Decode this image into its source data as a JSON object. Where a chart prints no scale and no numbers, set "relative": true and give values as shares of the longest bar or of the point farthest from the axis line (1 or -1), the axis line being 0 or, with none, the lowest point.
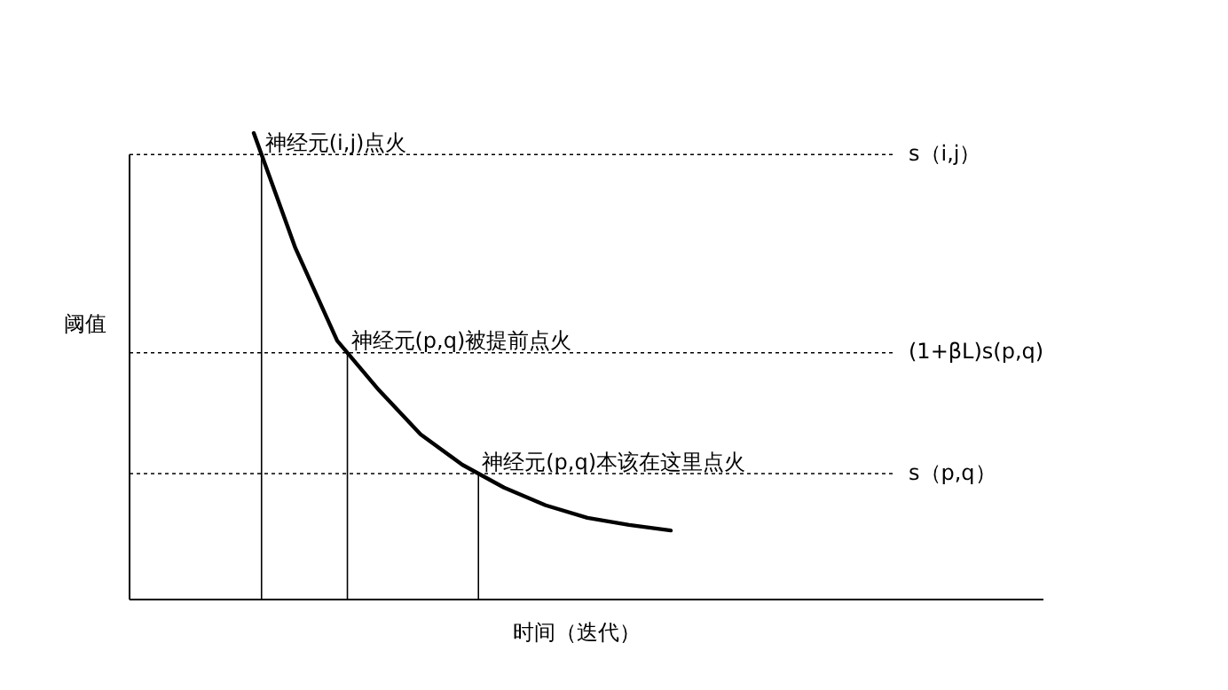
{
  "chart_data": {
    "type": "line",
    "relative": true,
    "xlabel": "时间（迭代）",
    "line_style": "solid",
    "categories": [
      null,
      null,
      null,
      null,
      null,
      null,
      null,
      null,
      null,
      null,
      null
    ],
    "series": [
      {
        "color": "#000000",
        "values": [
          1.0,
          0.753,
          0.555,
          0.449,
          0.354,
          0.289,
          0.24,
          0.202,
          0.175,
          0.16,
          0.148
        ]
      }
    ],
    "ref_lines": [
      {
        "axis": "y",
        "value": 0.954,
        "label": "s（i,j）",
        "line_style": "dotted",
        "color": "#000000"
      },
      {
        "axis": "y",
        "value": 0.529,
        "label": "(1+βL)s(p,q)",
        "line_style": "dotted",
        "color": "#000000"
      },
      {
        "axis": "y",
        "value": 0.27,
        "label": "s（p,q）",
        "line_style": "dotted",
        "color": "#000000"
      }
    ],
    "annotations": [
      {
        "text": "神经元(i,j)点火",
        "y": 0.954
      },
      {
        "text": "神经元(p,q)被提前点火",
        "y": 0.529
      },
      {
        "text": "神经元(p,q)本该在这里点火",
        "y": 0.27
      },
      "阈值"
    ]
  }
}
